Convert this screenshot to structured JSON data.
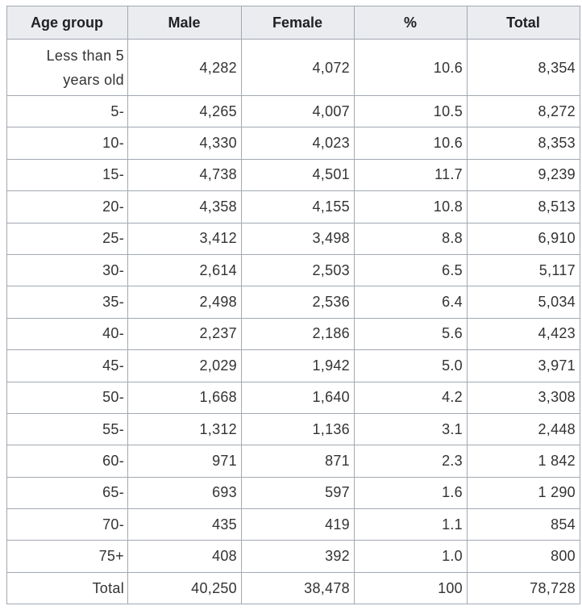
{
  "table": {
    "headers": [
      "Age group",
      "Male",
      "Female",
      "%",
      "Total"
    ],
    "rows": [
      [
        "Less than 5 years old",
        "4,282",
        "4,072",
        "10.6",
        "8,354"
      ],
      [
        "5-",
        "4,265",
        "4,007",
        "10.5",
        "8,272"
      ],
      [
        "10-",
        "4,330",
        "4,023",
        "10.6",
        "8,353"
      ],
      [
        "15-",
        "4,738",
        "4,501",
        "11.7",
        "9,239"
      ],
      [
        "20-",
        "4,358",
        "4,155",
        "10.8",
        "8,513"
      ],
      [
        "25-",
        "3,412",
        "3,498",
        "8.8",
        "6,910"
      ],
      [
        "30-",
        "2,614",
        "2,503",
        "6.5",
        "5,117"
      ],
      [
        "35-",
        "2,498",
        "2,536",
        "6.4",
        "5,034"
      ],
      [
        "40-",
        "2,237",
        "2,186",
        "5.6",
        "4,423"
      ],
      [
        "45-",
        "2,029",
        "1,942",
        "5.0",
        "3,971"
      ],
      [
        "50-",
        "1,668",
        "1,640",
        "4.2",
        "3,308"
      ],
      [
        "55-",
        "1,312",
        "1,136",
        "3.1",
        "2,448"
      ],
      [
        "60-",
        "971",
        "871",
        "2.3",
        "1 842"
      ],
      [
        "65-",
        "693",
        "597",
        "1.6",
        "1 290"
      ],
      [
        "70-",
        "435",
        "419",
        "1.1",
        "854"
      ],
      [
        "75+",
        "408",
        "392",
        "1.0",
        "800"
      ],
      [
        "Total",
        "40,250",
        "38,478",
        "100",
        "78,728"
      ]
    ]
  }
}
